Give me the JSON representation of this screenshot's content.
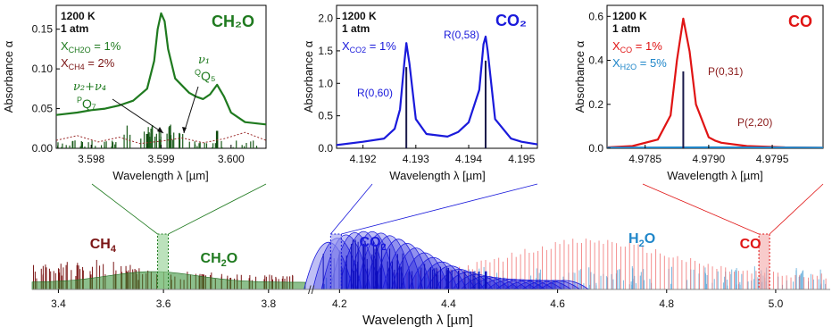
{
  "chart_data": [
    {
      "type": "line",
      "panel": "CH2O inset",
      "title": "CH₂O",
      "conditions": [
        "1200 K",
        "1 atm"
      ],
      "mixture": [
        {
          "species": "X",
          "sub": "CH2O",
          "value": " = 1%",
          "color": "#1f7a1f"
        },
        {
          "species": "X",
          "sub": "CH4",
          "value": " = 2%",
          "color": "#7a1515"
        }
      ],
      "xlabel": "Wavelength λ [µm]",
      "ylabel": "Absorbance α",
      "xlim": [
        3.5975,
        3.6005
      ],
      "ylim": [
        0,
        0.18
      ],
      "xticks": [
        "3.598",
        "3.599",
        "3.600"
      ],
      "xtick_values": [
        3.598,
        3.599,
        3.6
      ],
      "yticks": [
        "0.00",
        "0.05",
        "0.10",
        "0.15"
      ],
      "ytick_values": [
        0,
        0.05,
        0.1,
        0.15
      ],
      "annotations": [
        {
          "id": "v1",
          "text": "ν₁",
          "x": 3.5992,
          "y": 0.086
        },
        {
          "id": "QQ5",
          "sup": "Q",
          "text": "Q₅",
          "x": 3.5992,
          "y": 0.067
        },
        {
          "id": "v2v4",
          "text": "ν₂+ν₄",
          "x": 3.5982,
          "y": 0.061
        },
        {
          "id": "PQ7",
          "sup": "P",
          "text": "Q₇",
          "x": 3.5982,
          "y": 0.04
        }
      ],
      "series": [
        {
          "name": "CH2O",
          "color": "#1f7a1f",
          "x": [
            3.5975,
            3.5978,
            3.598,
            3.5982,
            3.5984,
            3.5986,
            3.5988,
            3.5989,
            3.59895,
            3.599,
            3.59905,
            3.5991,
            3.5992,
            3.5994,
            3.5995,
            3.5996,
            3.5997,
            3.5998,
            3.5999,
            3.6,
            3.6002,
            3.6005
          ],
          "values": [
            0.042,
            0.045,
            0.048,
            0.05,
            0.054,
            0.06,
            0.075,
            0.11,
            0.15,
            0.17,
            0.16,
            0.125,
            0.088,
            0.07,
            0.065,
            0.062,
            0.068,
            0.08,
            0.065,
            0.045,
            0.033,
            0.03
          ]
        },
        {
          "name": "CH4",
          "color": "#9b2a2a",
          "x": [
            3.5975,
            3.5978,
            3.5981,
            3.5984,
            3.5987,
            3.599,
            3.5993,
            3.5996,
            3.5999,
            3.6002,
            3.6005
          ],
          "values": [
            0.01,
            0.016,
            0.008,
            0.014,
            0.006,
            0.009,
            0.013,
            0.007,
            0.012,
            0.02,
            0.01
          ]
        }
      ]
    },
    {
      "type": "line",
      "panel": "CO2 inset",
      "title": "CO₂",
      "conditions": [
        "1200 K",
        "1 atm"
      ],
      "mixture": [
        {
          "species": "X",
          "sub": "CO2",
          "value": " = 1%",
          "color": "#1a1adb"
        }
      ],
      "xlabel": "Wavelength λ [µm]",
      "ylabel": "Absorbance α",
      "xlim": [
        4.1915,
        4.1953
      ],
      "ylim": [
        0,
        2.2
      ],
      "xticks": [
        "4.192",
        "4.193",
        "4.194",
        "4.195"
      ],
      "xtick_values": [
        4.192,
        4.193,
        4.194,
        4.195
      ],
      "yticks": [
        "0.0",
        "0.5",
        "1.0",
        "1.5",
        "2.0"
      ],
      "ytick_values": [
        0,
        0.5,
        1.0,
        1.5,
        2.0
      ],
      "annotations": [
        {
          "id": "R060",
          "text": "R(0,60)",
          "x": 4.1926,
          "y": 0.88
        },
        {
          "id": "R058",
          "text": "R(0,58)",
          "x": 4.1939,
          "y": 1.87
        }
      ],
      "series": [
        {
          "name": "CO2",
          "color": "#1a1adb",
          "x": [
            4.1915,
            4.192,
            4.1924,
            4.1926,
            4.1927,
            4.19278,
            4.19282,
            4.19288,
            4.193,
            4.1932,
            4.1936,
            4.1938,
            4.194,
            4.1942,
            4.19428,
            4.19432,
            4.19436,
            4.1945,
            4.1948,
            4.195,
            4.1953
          ],
          "values": [
            0.05,
            0.1,
            0.15,
            0.3,
            0.6,
            1.3,
            1.62,
            1.3,
            0.45,
            0.22,
            0.18,
            0.25,
            0.4,
            0.9,
            1.6,
            1.72,
            1.5,
            0.45,
            0.15,
            0.1,
            0.06
          ]
        }
      ],
      "sticks": [
        {
          "x": 4.19282,
          "value": 1.25
        },
        {
          "x": 4.19432,
          "value": 1.35
        }
      ]
    },
    {
      "type": "line",
      "panel": "CO inset",
      "title": "CO",
      "conditions": [
        "1200 K",
        "1 atm"
      ],
      "mixture": [
        {
          "species": "X",
          "sub": "CO",
          "value": " = 1%",
          "color": "#e01414"
        },
        {
          "species": "X",
          "sub": "H2O",
          "value": " = 5%",
          "color": "#1f86c9"
        }
      ],
      "xlabel": "Wavelength λ [µm]",
      "ylabel": "Absorbance α",
      "xlim": [
        4.9782,
        4.9799
      ],
      "ylim": [
        0,
        0.65
      ],
      "xticks": [
        "4.9785",
        "4.9790",
        "4.9795"
      ],
      "xtick_values": [
        4.9785,
        4.979,
        4.9795
      ],
      "yticks": [
        "0.0",
        "0.2",
        "0.4",
        "0.6"
      ],
      "ytick_values": [
        0,
        0.2,
        0.4,
        0.6
      ],
      "annotations": [
        {
          "id": "P031",
          "text": "P(0,31)",
          "x": 4.97903,
          "y": 0.27
        },
        {
          "id": "P220",
          "text": "P(2,20)",
          "x": 4.97918,
          "y": 0.09
        }
      ],
      "series": [
        {
          "name": "CO",
          "color": "#e01414",
          "x": [
            4.9782,
            4.9784,
            4.9786,
            4.9787,
            4.97875,
            4.9788,
            4.97885,
            4.9789,
            4.979,
            4.97905,
            4.9791,
            4.9793,
            4.9796,
            4.9799
          ],
          "values": [
            0.004,
            0.01,
            0.04,
            0.15,
            0.4,
            0.59,
            0.44,
            0.2,
            0.05,
            0.035,
            0.025,
            0.01,
            0.004,
            0.002
          ]
        },
        {
          "name": "H2O",
          "color": "#1f86c9",
          "x": [
            4.9782,
            4.979,
            4.9799
          ],
          "values": [
            0.003,
            0.004,
            0.003
          ]
        }
      ],
      "sticks": [
        {
          "x": 4.9788,
          "value": 0.35
        }
      ]
    },
    {
      "type": "area",
      "panel": "full spectrum",
      "xlabel": "Wavelength λ [µm]",
      "xlim": [
        3.35,
        5.1
      ],
      "axis_break": [
        3.87,
        4.17
      ],
      "xticks": [
        "3.4",
        "3.6",
        "3.8",
        "4.2",
        "4.4",
        "4.6",
        "4.8",
        "5.0"
      ],
      "xtick_values": [
        3.4,
        3.6,
        3.8,
        4.2,
        4.4,
        4.6,
        4.8,
        5.0
      ],
      "labels": [
        {
          "id": "CH4",
          "text": "CH",
          "sub": "4",
          "x": 3.46,
          "color": "#7a1515"
        },
        {
          "id": "CH2O",
          "text": "CH",
          "sub": "2",
          "tail": "O",
          "x": 3.65,
          "color": "#1f7a1f"
        },
        {
          "id": "CO2",
          "text": "CO",
          "sub": "2",
          "x": 4.22,
          "color": "#1a1adb"
        },
        {
          "id": "H2O",
          "text": "H",
          "sub": "2",
          "tail": "O",
          "x": 4.73,
          "color": "#1f86c9"
        },
        {
          "id": "CO",
          "text": "CO",
          "x": 4.97,
          "color": "#e01414"
        }
      ],
      "zoom_windows": [
        {
          "name": "CH2O window",
          "x": 3.599,
          "color": "#1f7a1f"
        },
        {
          "name": "CO2 window",
          "x": 4.1935,
          "color": "#1a1adb"
        },
        {
          "name": "CO window",
          "x": 4.979,
          "color": "#e01414"
        }
      ]
    }
  ]
}
